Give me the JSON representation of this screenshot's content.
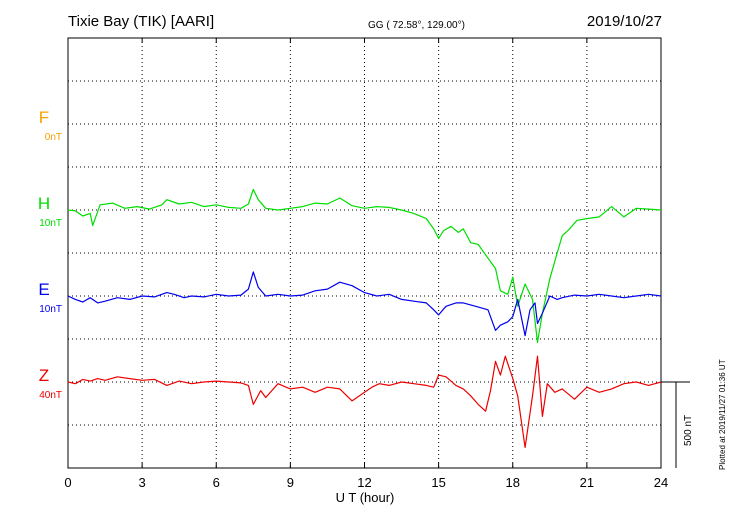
{
  "header": {
    "station": "Tixie Bay (TIK)  [AARI]",
    "coords": "GG ( 72.58°, 129.00°)",
    "date": "2019/10/27"
  },
  "footer": {
    "plotted": "Plotted at 2019/11/27 01:36 UT"
  },
  "chart_data": {
    "type": "line",
    "title": "Tixie Bay (TIK)  [AARI]",
    "xlabel": "U T (hour)",
    "xlim": [
      0,
      24
    ],
    "xticks": [
      0,
      3,
      6,
      9,
      12,
      15,
      18,
      21,
      24
    ],
    "grid": true,
    "scale_bar": {
      "label": "500 nT",
      "value_nT": 500
    },
    "colors": {
      "F": "#f5a000",
      "H": "#00dd00",
      "E": "#0000ee",
      "Z": "#ee0000"
    },
    "series": [
      {
        "name": "F",
        "baseline_label": "0nT",
        "color": "#f5a000",
        "x": [],
        "y": []
      },
      {
        "name": "H",
        "baseline_label": "10nT",
        "color": "#00dd00",
        "x": [
          0,
          0.3,
          0.6,
          0.9,
          1.0,
          1.3,
          1.8,
          2.3,
          2.8,
          3.3,
          3.8,
          4.0,
          4.5,
          5.0,
          5.5,
          6.0,
          6.5,
          7.0,
          7.3,
          7.5,
          7.7,
          8.0,
          8.5,
          9.0,
          9.5,
          10.0,
          10.5,
          11.0,
          11.5,
          12.0,
          12.5,
          13.0,
          13.5,
          14.0,
          14.5,
          14.8,
          15.0,
          15.2,
          15.5,
          15.8,
          16.0,
          16.3,
          16.6,
          17.0,
          17.3,
          17.5,
          17.8,
          18.0,
          18.2,
          18.5,
          18.8,
          19.0,
          19.2,
          19.5,
          19.8,
          20.0,
          20.3,
          20.6,
          21.0,
          21.5,
          22.0,
          22.5,
          23.0,
          23.5,
          24.0
        ],
        "y": [
          0,
          -5,
          -35,
          -20,
          -90,
          30,
          40,
          10,
          20,
          5,
          30,
          60,
          35,
          45,
          20,
          30,
          15,
          10,
          35,
          120,
          60,
          10,
          0,
          10,
          20,
          40,
          35,
          70,
          25,
          10,
          20,
          15,
          0,
          -20,
          -50,
          -110,
          -165,
          -120,
          -95,
          -130,
          -110,
          -190,
          -200,
          -280,
          -340,
          -470,
          -490,
          -390,
          -560,
          -430,
          -520,
          -770,
          -600,
          -400,
          -250,
          -150,
          -110,
          -60,
          -50,
          -40,
          20,
          -40,
          10,
          5,
          0
        ]
      },
      {
        "name": "E",
        "baseline_label": "10nT",
        "color": "#0000ee",
        "x": [
          0,
          0.3,
          0.6,
          0.9,
          1.2,
          1.5,
          2.0,
          2.5,
          3.0,
          3.5,
          4.0,
          4.3,
          4.7,
          5.0,
          5.5,
          6.0,
          6.5,
          7.0,
          7.3,
          7.5,
          7.7,
          8.0,
          8.5,
          9.0,
          9.5,
          10.0,
          10.5,
          11.0,
          11.5,
          12.0,
          12.5,
          13.0,
          13.5,
          14.0,
          14.5,
          14.8,
          15.0,
          15.3,
          15.7,
          16.0,
          16.5,
          17.0,
          17.3,
          17.5,
          17.8,
          18.0,
          18.2,
          18.5,
          18.7,
          18.9,
          19.0,
          19.2,
          19.5,
          19.8,
          20.0,
          20.5,
          21.0,
          21.5,
          22.0,
          22.5,
          23.0,
          23.5,
          24.0
        ],
        "y": [
          0,
          -20,
          -35,
          -10,
          -40,
          -30,
          -10,
          -20,
          0,
          -5,
          20,
          10,
          -10,
          0,
          -5,
          10,
          0,
          5,
          40,
          140,
          50,
          0,
          10,
          0,
          5,
          30,
          40,
          80,
          60,
          20,
          0,
          10,
          -20,
          -30,
          -40,
          -80,
          -110,
          -60,
          -40,
          -40,
          -60,
          -80,
          -200,
          -170,
          -150,
          -120,
          -20,
          -230,
          -80,
          -40,
          -160,
          -100,
          0,
          -20,
          -10,
          5,
          0,
          10,
          0,
          -10,
          0,
          10,
          0
        ]
      },
      {
        "name": "Z",
        "baseline_label": "40nT",
        "color": "#ee0000",
        "x": [
          0,
          0.3,
          0.6,
          0.9,
          1.2,
          1.5,
          2.0,
          2.5,
          3.0,
          3.5,
          4.0,
          4.5,
          5.0,
          5.5,
          6.0,
          6.5,
          7.0,
          7.3,
          7.5,
          7.8,
          8.0,
          8.5,
          9.0,
          9.5,
          10.0,
          10.5,
          11.0,
          11.5,
          12.0,
          12.3,
          12.6,
          13.0,
          13.5,
          14.0,
          14.5,
          14.8,
          15.0,
          15.3,
          15.7,
          16.0,
          16.3,
          16.6,
          16.9,
          17.1,
          17.3,
          17.5,
          17.7,
          18.0,
          18.2,
          18.5,
          18.8,
          19.0,
          19.2,
          19.4,
          19.7,
          20.0,
          20.5,
          21.0,
          21.5,
          22.0,
          22.5,
          23.0,
          23.5,
          24.0
        ],
        "y": [
          0,
          -10,
          15,
          5,
          20,
          10,
          30,
          20,
          10,
          15,
          -20,
          5,
          -10,
          0,
          5,
          0,
          -5,
          -20,
          -130,
          -50,
          -90,
          -10,
          -40,
          -30,
          -60,
          -30,
          -40,
          -110,
          -60,
          -30,
          -10,
          -20,
          0,
          -10,
          -20,
          -30,
          40,
          30,
          -20,
          -40,
          -80,
          -130,
          -170,
          -50,
          120,
          40,
          150,
          20,
          -80,
          -380,
          -80,
          150,
          -200,
          -10,
          -60,
          -40,
          -100,
          -30,
          -60,
          -40,
          -10,
          0,
          -20,
          0
        ]
      }
    ]
  }
}
